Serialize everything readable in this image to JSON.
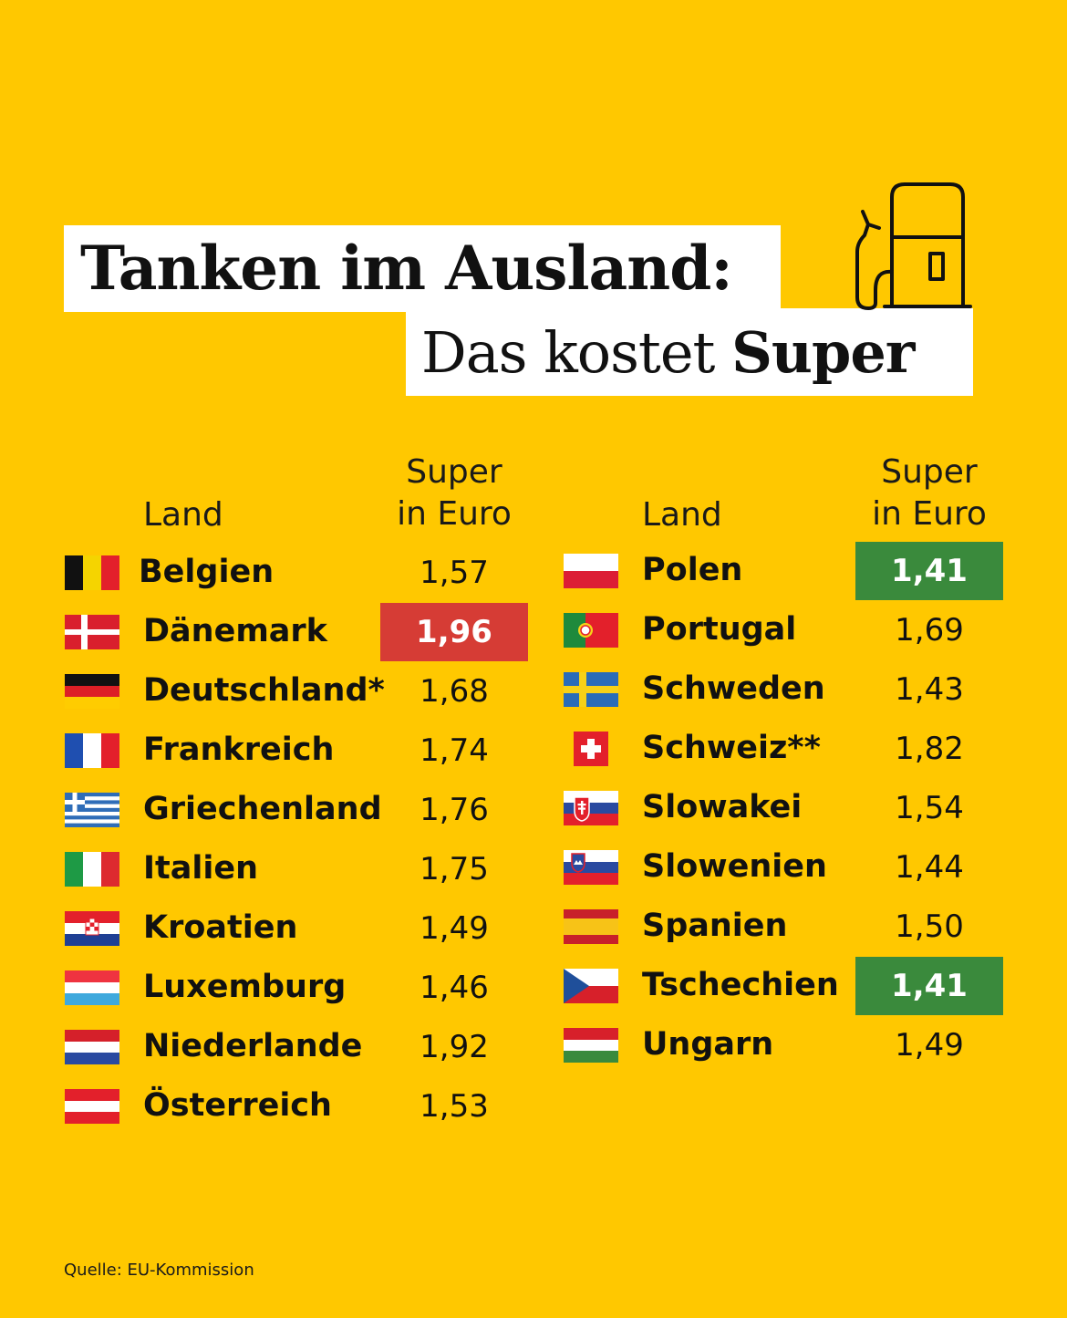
{
  "header": {
    "title_line1": "Tanken im Ausland:",
    "title_line2_prefix": "Das kostet ",
    "title_line2_bold": "Super"
  },
  "columns": {
    "land": "Land",
    "price_line1": "Super",
    "price_line2": "in Euro"
  },
  "source": "Quelle: EU-Kommission",
  "colors": {
    "background": "#ffc800",
    "highest": "#d63c35",
    "lowest": "#3a8a3c"
  },
  "chart_data": {
    "type": "table",
    "title": "Tanken im Ausland: Das kostet Super",
    "columns": [
      "Land",
      "Super in Euro"
    ],
    "rows": [
      {
        "country": "Belgien",
        "flag": "belgium-flag-icon",
        "price": "1,57"
      },
      {
        "country": "Dänemark",
        "flag": "denmark-flag-icon",
        "price": "1,96",
        "highlight": "highest"
      },
      {
        "country": "Deutschland*",
        "flag": "germany-flag-icon",
        "price": "1,68"
      },
      {
        "country": "Frankreich",
        "flag": "france-flag-icon",
        "price": "1,74"
      },
      {
        "country": "Griechenland",
        "flag": "greece-flag-icon",
        "price": "1,76"
      },
      {
        "country": "Italien",
        "flag": "italy-flag-icon",
        "price": "1,75"
      },
      {
        "country": "Kroatien",
        "flag": "croatia-flag-icon",
        "price": "1,49"
      },
      {
        "country": "Luxemburg",
        "flag": "luxembourg-flag-icon",
        "price": "1,46"
      },
      {
        "country": "Niederlande",
        "flag": "netherlands-flag-icon",
        "price": "1,92"
      },
      {
        "country": "Österreich",
        "flag": "austria-flag-icon",
        "price": "1,53"
      },
      {
        "country": "Polen",
        "flag": "poland-flag-icon",
        "price": "1,41",
        "highlight": "lowest"
      },
      {
        "country": "Portugal",
        "flag": "portugal-flag-icon",
        "price": "1,69"
      },
      {
        "country": "Schweden",
        "flag": "sweden-flag-icon",
        "price": "1,43"
      },
      {
        "country": "Schweiz**",
        "flag": "switzerland-flag-icon",
        "price": "1,82"
      },
      {
        "country": "Slowakei",
        "flag": "slovakia-flag-icon",
        "price": "1,54"
      },
      {
        "country": "Slowenien",
        "flag": "slovenia-flag-icon",
        "price": "1,44"
      },
      {
        "country": "Spanien",
        "flag": "spain-flag-icon",
        "price": "1,50"
      },
      {
        "country": "Tschechien",
        "flag": "czechia-flag-icon",
        "price": "1,41",
        "highlight": "lowest"
      },
      {
        "country": "Ungarn",
        "flag": "hungary-flag-icon",
        "price": "1,49"
      }
    ]
  }
}
